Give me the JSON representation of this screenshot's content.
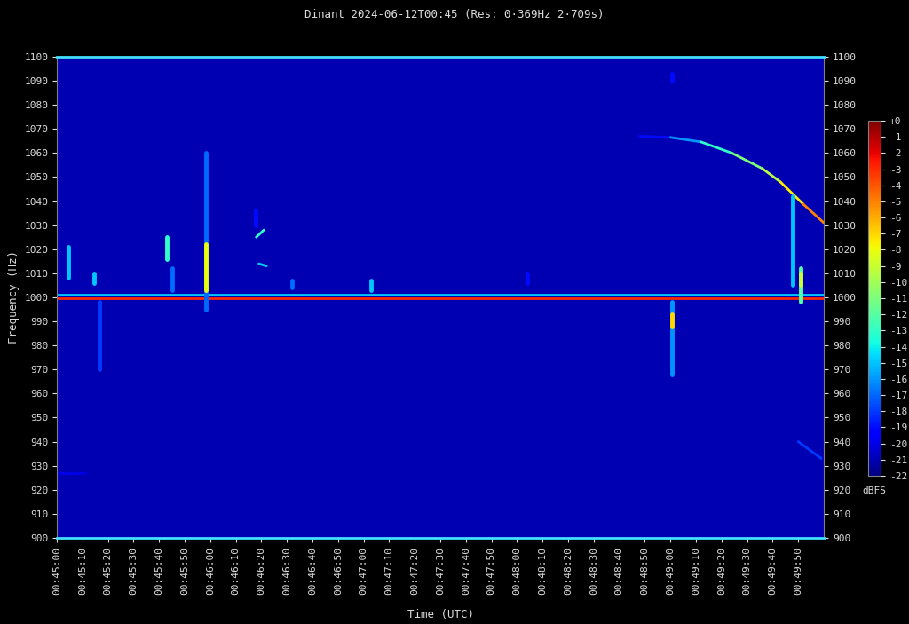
{
  "chart_data": {
    "type": "spectrogram",
    "title": "Dinant 2024-06-12T00:45 (Res: 0·369Hz 2·709s)",
    "x_label": "Time (UTC)",
    "y_label": "Frequency (Hz)",
    "xlim": [
      0,
      300
    ],
    "xticks": [
      {
        "value": 0,
        "label": "00:45:00"
      },
      {
        "value": 10,
        "label": "00:45:10"
      },
      {
        "value": 20,
        "label": "00:45:20"
      },
      {
        "value": 30,
        "label": "00:45:30"
      },
      {
        "value": 40,
        "label": "00:45:40"
      },
      {
        "value": 50,
        "label": "00:45:50"
      },
      {
        "value": 60,
        "label": "00:46:00"
      },
      {
        "value": 70,
        "label": "00:46:10"
      },
      {
        "value": 80,
        "label": "00:46:20"
      },
      {
        "value": 90,
        "label": "00:46:30"
      },
      {
        "value": 100,
        "label": "00:46:40"
      },
      {
        "value": 110,
        "label": "00:46:50"
      },
      {
        "value": 120,
        "label": "00:47:00"
      },
      {
        "value": 130,
        "label": "00:47:10"
      },
      {
        "value": 140,
        "label": "00:47:20"
      },
      {
        "value": 150,
        "label": "00:47:30"
      },
      {
        "value": 160,
        "label": "00:47:40"
      },
      {
        "value": 170,
        "label": "00:47:50"
      },
      {
        "value": 180,
        "label": "00:48:00"
      },
      {
        "value": 190,
        "label": "00:48:10"
      },
      {
        "value": 200,
        "label": "00:48:20"
      },
      {
        "value": 210,
        "label": "00:48:30"
      },
      {
        "value": 220,
        "label": "00:48:40"
      },
      {
        "value": 230,
        "label": "00:48:50"
      },
      {
        "value": 240,
        "label": "00:49:00"
      },
      {
        "value": 250,
        "label": "00:49:10"
      },
      {
        "value": 260,
        "label": "00:49:20"
      },
      {
        "value": 270,
        "label": "00:49:30"
      },
      {
        "value": 280,
        "label": "00:49:40"
      },
      {
        "value": 290,
        "label": "00:49:50"
      }
    ],
    "ylim": [
      900,
      1100
    ],
    "yticks": [
      900,
      910,
      920,
      930,
      940,
      950,
      960,
      970,
      980,
      990,
      1000,
      1010,
      1020,
      1030,
      1040,
      1050,
      1060,
      1070,
      1080,
      1090,
      1100
    ],
    "background_dbfs": -21,
    "colorbar": {
      "label": "dBFS",
      "range": [
        -22,
        0
      ],
      "ticks": [
        {
          "value": 0,
          "label": "+0"
        },
        -1,
        -2,
        -3,
        -4,
        -5,
        -6,
        -7,
        -8,
        -9,
        -10,
        -11,
        -12,
        -13,
        -14,
        -15,
        -16,
        -17,
        -18,
        -19,
        -20,
        -21,
        -22
      ]
    },
    "tracks": [
      {
        "times": [
          0,
          300
        ],
        "freqs": [
          1001,
          1001
        ],
        "dbfs": [
          -15,
          -15
        ]
      },
      {
        "times": [
          0,
          300
        ],
        "freqs": [
          999.5,
          999.5
        ],
        "dbfs": [
          -3,
          -3
        ]
      },
      {
        "times": [
          0,
          11
        ],
        "freqs": [
          927,
          927
        ],
        "dbfs": [
          -20,
          -20
        ]
      },
      {
        "times": [
          4.5,
          4.5
        ],
        "freqs": [
          1008,
          1021
        ],
        "dbfs": [
          -15,
          -15
        ]
      },
      {
        "times": [
          14.6,
          14.6
        ],
        "freqs": [
          1006,
          1010
        ],
        "dbfs": [
          -15,
          -15
        ]
      },
      {
        "times": [
          16.7,
          16.7
        ],
        "freqs": [
          970,
          998
        ],
        "dbfs": [
          -18,
          -18
        ]
      },
      {
        "times": [
          43,
          43
        ],
        "freqs": [
          1016,
          1025
        ],
        "dbfs": [
          -13,
          -13
        ]
      },
      {
        "times": [
          45,
          45
        ],
        "freqs": [
          1003,
          1012
        ],
        "dbfs": [
          -17,
          -17
        ]
      },
      {
        "times": [
          58.3,
          58.3
        ],
        "freqs": [
          995,
          1060
        ],
        "dbfs": [
          -17,
          -17
        ]
      },
      {
        "times": [
          58.3,
          58.3
        ],
        "freqs": [
          1003,
          1022
        ],
        "dbfs": [
          -8,
          -8
        ]
      },
      {
        "times": [
          77.7,
          77.7
        ],
        "freqs": [
          1030,
          1036
        ],
        "dbfs": [
          -19,
          -19
        ]
      },
      {
        "times": [
          78,
          81
        ],
        "freqs": [
          1025,
          1028
        ],
        "dbfs": [
          -13,
          -13
        ]
      },
      {
        "times": [
          79,
          82
        ],
        "freqs": [
          1014,
          1013
        ],
        "dbfs": [
          -15,
          -15
        ]
      },
      {
        "times": [
          92,
          92
        ],
        "freqs": [
          1004,
          1007
        ],
        "dbfs": [
          -17,
          -17
        ]
      },
      {
        "times": [
          123,
          123
        ],
        "freqs": [
          1003,
          1007
        ],
        "dbfs": [
          -15,
          -15
        ]
      },
      {
        "times": [
          184,
          184
        ],
        "freqs": [
          1006,
          1010
        ],
        "dbfs": [
          -19,
          -19
        ]
      },
      {
        "times": [
          240.5,
          240.5
        ],
        "freqs": [
          968,
          998
        ],
        "dbfs": [
          -16,
          -16
        ]
      },
      {
        "times": [
          240.5,
          240.5
        ],
        "freqs": [
          988,
          993
        ],
        "dbfs": [
          -7,
          -7
        ]
      },
      {
        "times": [
          240.5,
          240.5
        ],
        "freqs": [
          1090,
          1093
        ],
        "dbfs": [
          -19,
          -19
        ]
      },
      {
        "times": [
          228,
          240,
          252,
          264,
          276,
          283,
          292,
          300
        ],
        "freqs": [
          1067,
          1066.5,
          1064.6,
          1060,
          1053.5,
          1048,
          1038.7,
          1031
        ],
        "dbfs": [
          -20,
          -18,
          -14,
          -12,
          -10,
          -9,
          -6,
          -4
        ]
      },
      {
        "times": [
          290,
          299
        ],
        "freqs": [
          940,
          933
        ],
        "dbfs": [
          -18,
          -18
        ]
      },
      {
        "times": [
          288,
          288
        ],
        "freqs": [
          1005,
          1042
        ],
        "dbfs": [
          -15,
          -15
        ]
      },
      {
        "times": [
          291,
          291
        ],
        "freqs": [
          998,
          1012
        ],
        "dbfs": [
          -12,
          -12
        ]
      },
      {
        "times": [
          291,
          291
        ],
        "freqs": [
          1005,
          1010
        ],
        "dbfs": [
          -9,
          -9
        ]
      }
    ]
  }
}
